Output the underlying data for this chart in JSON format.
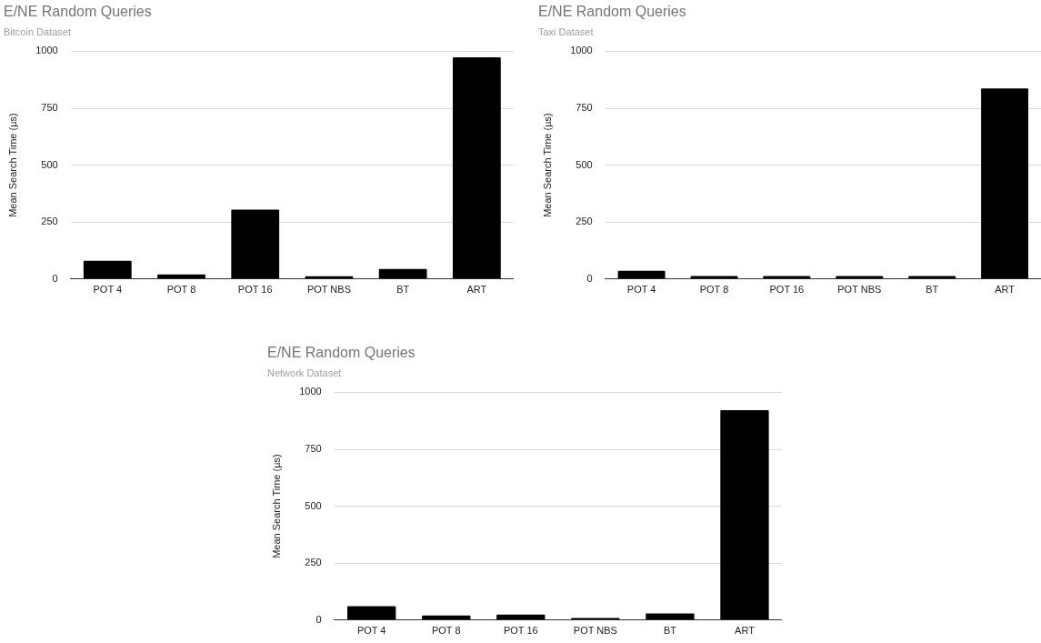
{
  "chart_data": [
    {
      "type": "bar",
      "title": "E/NE Random Queries",
      "subtitle": "Bitcoin Dataset",
      "ylabel": "Mean Search Time (µs)",
      "categories": [
        "POT 4",
        "POT 8",
        "POT 16",
        "POT NBS",
        "BT",
        "ART"
      ],
      "values": [
        80,
        20,
        305,
        12,
        44,
        974
      ],
      "color": "#000000",
      "ylim": [
        0,
        1000
      ],
      "yticks": [
        0,
        250,
        500,
        750,
        1000
      ],
      "grid": "y"
    },
    {
      "type": "bar",
      "title": "E/NE Random Queries",
      "subtitle": "Taxi Dataset",
      "ylabel": "Mean Search Time (µs)",
      "categories": [
        "POT 4",
        "POT 8",
        "POT 16",
        "POT NBS",
        "BT",
        "ART"
      ],
      "values": [
        36,
        13,
        13,
        13,
        13,
        837
      ],
      "color": "#000000",
      "ylim": [
        0,
        1000
      ],
      "yticks": [
        0,
        250,
        500,
        750,
        1000
      ],
      "grid": "y"
    },
    {
      "type": "bar",
      "title": "E/NE Random Queries",
      "subtitle": "Network Dataset",
      "ylabel": "Mean Search Time (µs)",
      "categories": [
        "POT 4",
        "POT 8",
        "POT 16",
        "POT NBS",
        "BT",
        "ART"
      ],
      "values": [
        61,
        20,
        24,
        9,
        29,
        922
      ],
      "color": "#000000",
      "ylim": [
        0,
        1000
      ],
      "yticks": [
        0,
        250,
        500,
        750,
        1000
      ],
      "grid": "y"
    }
  ]
}
